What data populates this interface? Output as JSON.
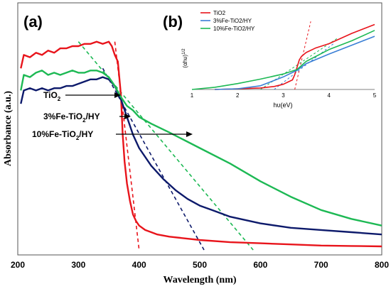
{
  "chart_data": [
    {
      "panel": "(a)",
      "type": "line",
      "xlabel": "Wavelength (nm)",
      "ylabel": "Absorbance (a.u.)",
      "xlim": [
        200,
        800
      ],
      "xticks": [
        200,
        300,
        400,
        500,
        600,
        700,
        800
      ],
      "yticks_labeled": false,
      "grid": false,
      "series": [
        {
          "name": "TiO2",
          "color": "#e8141b",
          "x": [
            205,
            210,
            220,
            230,
            240,
            250,
            260,
            270,
            280,
            290,
            300,
            310,
            320,
            330,
            340,
            350,
            355,
            360,
            365,
            370,
            373,
            376,
            380,
            385,
            390,
            395,
            400,
            410,
            420,
            430,
            450,
            500,
            550,
            600,
            650,
            700,
            750,
            800
          ],
          "y": [
            0.82,
            0.88,
            0.87,
            0.89,
            0.88,
            0.9,
            0.89,
            0.91,
            0.91,
            0.92,
            0.92,
            0.93,
            0.93,
            0.94,
            0.93,
            0.94,
            0.92,
            0.88,
            0.85,
            0.7,
            0.52,
            0.4,
            0.3,
            0.22,
            0.16,
            0.13,
            0.11,
            0.09,
            0.08,
            0.07,
            0.06,
            0.045,
            0.035,
            0.03,
            0.025,
            0.02,
            0.018,
            0.016
          ]
        },
        {
          "name": "3%Fe-TiO2/HY",
          "color": "#0d1a6b",
          "x": [
            205,
            210,
            220,
            230,
            240,
            250,
            260,
            270,
            280,
            290,
            300,
            310,
            320,
            330,
            340,
            350,
            360,
            370,
            380,
            390,
            400,
            420,
            440,
            460,
            480,
            500,
            520,
            550,
            600,
            650,
            700,
            750,
            800
          ],
          "y": [
            0.66,
            0.72,
            0.73,
            0.72,
            0.73,
            0.72,
            0.73,
            0.73,
            0.74,
            0.74,
            0.75,
            0.76,
            0.77,
            0.77,
            0.78,
            0.77,
            0.74,
            0.68,
            0.6,
            0.52,
            0.46,
            0.38,
            0.32,
            0.27,
            0.23,
            0.2,
            0.18,
            0.15,
            0.12,
            0.1,
            0.09,
            0.08,
            0.07
          ]
        },
        {
          "name": "10%Fe-TiO2/HY",
          "color": "#1db954",
          "x": [
            205,
            210,
            220,
            230,
            240,
            250,
            260,
            270,
            280,
            290,
            300,
            310,
            320,
            330,
            340,
            350,
            360,
            370,
            380,
            390,
            400,
            420,
            450,
            500,
            550,
            600,
            650,
            700,
            750,
            800
          ],
          "y": [
            0.72,
            0.79,
            0.78,
            0.8,
            0.81,
            0.79,
            0.8,
            0.79,
            0.8,
            0.81,
            0.8,
            0.8,
            0.81,
            0.81,
            0.8,
            0.78,
            0.74,
            0.69,
            0.65,
            0.63,
            0.6,
            0.57,
            0.53,
            0.46,
            0.39,
            0.31,
            0.24,
            0.18,
            0.14,
            0.11
          ]
        }
      ],
      "tangent_lines": [
        {
          "series": "TiO2",
          "color": "#e8141b",
          "x": [
            360,
            400
          ],
          "y": [
            0.94,
            0.0
          ]
        },
        {
          "series": "3%Fe-TiO2/HY",
          "color": "#0d1a6b",
          "x": [
            340,
            507
          ],
          "y": [
            0.82,
            0.0
          ]
        },
        {
          "series": "10%Fe-TiO2/HY",
          "color": "#1db954",
          "x": [
            300,
            588
          ],
          "y": [
            0.94,
            0.0
          ]
        }
      ],
      "annotations": [
        {
          "text": "TiO2",
          "display": [
            "TiO",
            "2",
            ""
          ]
        },
        {
          "text": "3%Fe-TiO2/HY",
          "display": [
            "3%Fe-TiO",
            "2",
            "/HY"
          ]
        },
        {
          "text": "10%Fe-TiO2/HY",
          "display": [
            "10%Fe-TiO",
            "2",
            "/HY"
          ]
        }
      ]
    },
    {
      "panel": "(b)",
      "type": "line",
      "xlabel": "hυ(eV)",
      "ylabel": "(αhυ)",
      "ylabel_sup": "1/2",
      "xlim": [
        1,
        5
      ],
      "xticks": [
        1,
        2,
        3,
        4,
        5
      ],
      "yticks_labeled": false,
      "legend_position": "top-left",
      "series": [
        {
          "name": "TiO2",
          "color": "#e8141b",
          "x": [
            1.5,
            2.0,
            2.5,
            2.8,
            3.0,
            3.1,
            3.2,
            3.25,
            3.3,
            3.35,
            3.4,
            3.5,
            3.7,
            4.0,
            4.5,
            5.0
          ],
          "y": [
            0.0,
            0.01,
            0.02,
            0.04,
            0.07,
            0.1,
            0.13,
            0.2,
            0.3,
            0.4,
            0.45,
            0.5,
            0.56,
            0.62,
            0.76,
            0.88
          ]
        },
        {
          "name": "3%Fe-TiO2/HY",
          "color": "#3a7fd5",
          "x": [
            1.5,
            2.0,
            2.5,
            3.0,
            3.3,
            3.5,
            4.0,
            4.5,
            5.0
          ],
          "y": [
            0.0,
            0.01,
            0.05,
            0.17,
            0.26,
            0.35,
            0.48,
            0.6,
            0.72
          ]
        },
        {
          "name": "10%Fe-TiO2/HY",
          "color": "#1db954",
          "x": [
            1.0,
            1.5,
            2.0,
            2.5,
            3.0,
            3.3,
            3.5,
            4.0,
            4.5,
            5.0
          ],
          "y": [
            0.0,
            0.03,
            0.08,
            0.14,
            0.21,
            0.27,
            0.38,
            0.54,
            0.66,
            0.8
          ]
        }
      ],
      "tangent_lines": [
        {
          "series": "TiO2",
          "color": "#e8141b",
          "x": [
            3.25,
            3.6
          ],
          "y": [
            0.0,
            0.92
          ]
        },
        {
          "series": "3%Fe-TiO2/HY",
          "color": "#3a7fd5",
          "x": [
            2.8,
            4.1
          ],
          "y": [
            0.0,
            0.62
          ]
        },
        {
          "series": "10%Fe-TiO2/HY",
          "color": "#1db954",
          "x": [
            2.5,
            4.2
          ],
          "y": [
            0.0,
            0.7
          ]
        }
      ]
    }
  ]
}
